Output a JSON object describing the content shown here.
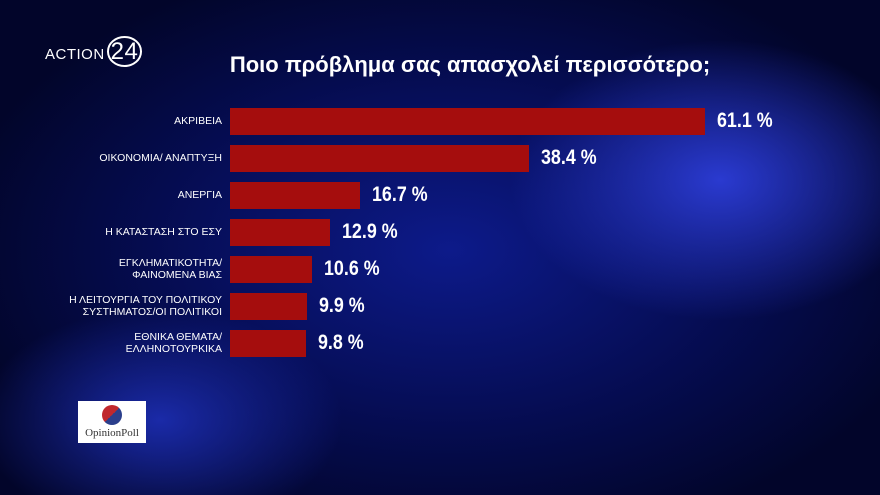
{
  "chart_data": {
    "type": "bar",
    "orientation": "horizontal",
    "title": "Ποιο πρόβλημα σας απασχολεί περισσότερο;",
    "categories": [
      "ΑΚΡΙΒΕΙΑ",
      "ΟΙΚΟΝΟΜΙΑ/ ΑΝΑΠΤΥΞΗ",
      "ΑΝΕΡΓΙΑ",
      "Η ΚΑΤΑΣΤΑΣΗ ΣΤΟ ΕΣΥ",
      "ΕΓΚΛΗΜΑΤΙΚΟΤΗΤΑ/\nΦΑΙΝΟΜΕΝΑ ΒΙΑΣ",
      "Η ΛΕΙΤΟΥΡΓΙΑ ΤΟΥ ΠΟΛΙΤΙΚΟΥ\nΣΥΣΤΗΜΑΤΟΣ/ΟΙ ΠΟΛΙΤΙΚΟΙ",
      "ΕΘΝΙΚΑ ΘΕΜΑΤΑ/\nΕΛΛΗΝΟΤΟΥΡΚΙΚΑ"
    ],
    "values": [
      61.1,
      38.4,
      16.7,
      12.9,
      10.6,
      9.9,
      9.8
    ],
    "value_labels": [
      "61.1 %",
      "38.4 %",
      "16.7 %",
      "12.9 %",
      "10.6 %",
      "9.9 %",
      "9.8 %"
    ],
    "color": "#a50d0d"
  },
  "logos": {
    "channel": "ACTION",
    "channel_number": "24",
    "pollster": "OpinionPoll"
  }
}
